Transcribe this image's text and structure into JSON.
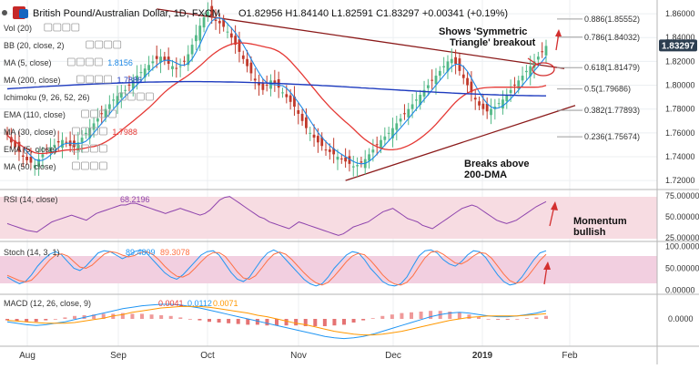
{
  "header": {
    "symbol": "British Pound/Australian Dollar, 1D, FXCM",
    "ohlc": "O1.82956  H1.84140  L1.82591  C1.83297  +0.00341 (+0.19%)"
  },
  "indicators": [
    {
      "label": "Vol (20)",
      "value": "",
      "color": "#777777"
    },
    {
      "label": "BB (20, close, 2)",
      "value": "",
      "color": "#777777"
    },
    {
      "label": "MA (5, close)",
      "value": "1.8156",
      "color": "#1e88e5"
    },
    {
      "label": "MA (200, close)",
      "value": "1.7886",
      "color": "#1e3bbf"
    },
    {
      "label": "Ichimoku (9, 26, 52, 26)",
      "value": "",
      "color": "#777777"
    },
    {
      "label": "EMA (110, close)",
      "value": "",
      "color": "#777777"
    },
    {
      "label": "MA (30, close)",
      "value": "1.7988",
      "color": "#e53935"
    },
    {
      "label": "EMA (5, close)",
      "value": "",
      "color": "#777777"
    },
    {
      "label": "MA (50, close)",
      "value": "",
      "color": "#777777"
    }
  ],
  "panes": {
    "rsi_label": "RSI (14, close)",
    "rsi_value": "68.2196",
    "stoch_label": "Stoch (14, 3, 1)",
    "stoch_k": "89.4809",
    "stoch_d": "89.3078",
    "macd_label": "MACD (12, 26, close, 9)",
    "macd_hist": "0.0041",
    "macd_line": "0.0112",
    "macd_signal": "0.0071"
  },
  "annotations": {
    "triangle": "Shows 'Symmetric Triangle' breakout",
    "dma": "Breaks above 200-DMA",
    "momentum": "Momentum bullish"
  },
  "colors": {
    "up_candle": "#53b987",
    "down_candle": "#c0392b",
    "ma5": "#1e88e5",
    "ma30": "#e53935",
    "ma200": "#1e3bbf",
    "trendline": "#8b1a1a",
    "rsi": "#8e44ad",
    "stoch_k": "#2196f3",
    "stoch_d": "#ff7043",
    "macd": "#2196f3",
    "signal": "#ff9800",
    "price_badge": "#2c3e50"
  },
  "chart_data": [
    {
      "type": "candlestick",
      "title": "British Pound/Australian Dollar, 1D, FXCM",
      "x_ticks": [
        "Aug",
        "Sep",
        "Oct",
        "Nov",
        "Dec",
        "2019",
        "Feb"
      ],
      "y_ticks": [
        1.72,
        1.74,
        1.76,
        1.78,
        1.8,
        1.82,
        1.84,
        1.86
      ],
      "ylim": [
        1.714,
        1.87
      ],
      "last_price": 1.83297,
      "fib_levels": [
        {
          "label": "0.886(1.85552)",
          "value": 1.85552
        },
        {
          "label": "0.786(1.84032)",
          "value": 1.84032
        },
        {
          "label": "0.618(1.81479)",
          "value": 1.81479
        },
        {
          "label": "0.5(1.79686)",
          "value": 1.79686
        },
        {
          "label": "0.382(1.77893)",
          "value": 1.77893
        },
        {
          "label": "0.236(1.75674)",
          "value": 1.75674
        }
      ],
      "series": [
        {
          "name": "Close",
          "values": [
            1.758,
            1.752,
            1.748,
            1.744,
            1.74,
            1.737,
            1.735,
            1.733,
            1.738,
            1.742,
            1.746,
            1.748,
            1.75,
            1.752,
            1.754,
            1.752,
            1.749,
            1.748,
            1.752,
            1.756,
            1.76,
            1.764,
            1.768,
            1.772,
            1.776,
            1.78,
            1.784,
            1.788,
            1.791,
            1.794,
            1.796,
            1.8,
            1.804,
            1.808,
            1.811,
            1.814,
            1.817,
            1.82,
            1.822,
            1.824,
            1.821,
            1.818,
            1.816,
            1.814,
            1.816,
            1.82,
            1.826,
            1.834,
            1.842,
            1.85,
            1.857,
            1.862,
            1.858,
            1.854,
            1.852,
            1.849,
            1.845,
            1.84,
            1.834,
            1.828,
            1.822,
            1.816,
            1.81,
            1.804,
            1.8,
            1.796,
            1.8,
            1.804,
            1.802,
            1.798,
            1.794,
            1.79,
            1.786,
            1.782,
            1.776,
            1.77,
            1.764,
            1.76,
            1.756,
            1.752,
            1.749,
            1.746,
            1.744,
            1.742,
            1.74,
            1.738,
            1.736,
            1.734,
            1.732,
            1.733,
            1.735,
            1.738,
            1.742,
            1.746,
            1.75,
            1.754,
            1.757,
            1.76,
            1.764,
            1.768,
            1.772,
            1.776,
            1.78,
            1.784,
            1.788,
            1.792,
            1.796,
            1.8,
            1.804,
            1.808,
            1.812,
            1.816,
            1.82,
            1.822,
            1.818,
            1.812,
            1.806,
            1.8,
            1.794,
            1.788,
            1.783,
            1.78,
            1.778,
            1.78,
            1.782,
            1.785,
            1.788,
            1.792,
            1.796,
            1.8,
            1.804,
            1.808,
            1.812,
            1.816,
            1.82,
            1.824,
            1.828,
            1.833
          ]
        },
        {
          "name": "MA (5, close)",
          "values": []
        },
        {
          "name": "MA (30, close)",
          "values": []
        },
        {
          "name": "MA (200, close)",
          "values": []
        }
      ]
    },
    {
      "type": "line",
      "title": "RSI (14, close)",
      "y_ticks": [
        25.0,
        50.0,
        75.0
      ],
      "ylim": [
        22,
        78
      ],
      "series": [
        {
          "name": "RSI",
          "values": [
            42,
            40,
            38,
            36,
            34,
            33,
            32,
            36,
            40,
            44,
            46,
            48,
            50,
            52,
            50,
            48,
            46,
            50,
            54,
            56,
            58,
            60,
            62,
            64,
            64,
            66,
            66,
            64,
            62,
            60,
            58,
            56,
            54,
            56,
            58,
            60,
            58,
            56,
            54,
            52,
            54,
            58,
            64,
            70,
            73,
            74,
            70,
            66,
            62,
            58,
            54,
            50,
            48,
            44,
            42,
            40,
            38,
            36,
            40,
            44,
            42,
            40,
            38,
            36,
            34,
            32,
            30,
            28,
            30,
            34,
            38,
            40,
            42,
            44,
            48,
            52,
            56,
            58,
            60,
            56,
            52,
            48,
            46,
            44,
            40,
            38,
            36,
            40,
            44,
            48,
            52,
            56,
            60,
            62,
            64,
            62,
            58,
            54,
            50,
            46,
            44,
            42,
            44,
            46,
            50,
            54,
            58,
            62,
            65,
            68
          ]
        }
      ]
    },
    {
      "type": "line",
      "title": "Stoch (14, 3, 1)",
      "y_ticks": [
        0.0,
        50.0,
        100.0
      ],
      "ylim": [
        -5,
        105
      ],
      "series": [
        {
          "name": "%K",
          "values": [
            30,
            22,
            15,
            20,
            35,
            55,
            70,
            82,
            88,
            80,
            65,
            50,
            45,
            55,
            70,
            85,
            90,
            88,
            80,
            72,
            78,
            88,
            92,
            85,
            70,
            55,
            40,
            30,
            25,
            35,
            50,
            65,
            80,
            88,
            90,
            80,
            60,
            40,
            25,
            20,
            30,
            50,
            70,
            85,
            92,
            85,
            70,
            55,
            40,
            25,
            15,
            10,
            15,
            30,
            50,
            65,
            80,
            88,
            85,
            70,
            50,
            35,
            20,
            12,
            10,
            15,
            30,
            55,
            78,
            90,
            92,
            85,
            70,
            60,
            55,
            65,
            80,
            90,
            88,
            75,
            55,
            35,
            20,
            12,
            15,
            30,
            50,
            70,
            85,
            90
          ]
        },
        {
          "name": "%D",
          "values": [
            34,
            28,
            22,
            19,
            23,
            37,
            53,
            69,
            80,
            83,
            78,
            65,
            53,
            50,
            57,
            70,
            82,
            88,
            86,
            80,
            76,
            79,
            86,
            88,
            82,
            70,
            55,
            42,
            32,
            30,
            37,
            50,
            65,
            78,
            86,
            86,
            77,
            60,
            42,
            28,
            25,
            33,
            50,
            68,
            82,
            87,
            82,
            70,
            55,
            40,
            27,
            17,
            12,
            18,
            32,
            48,
            65,
            78,
            84,
            81,
            68,
            52,
            35,
            22,
            14,
            12,
            18,
            33,
            54,
            74,
            87,
            89,
            82,
            72,
            62,
            60,
            67,
            78,
            86,
            84,
            73,
            55,
            37,
            22,
            16,
            19,
            32,
            50,
            68,
            82
          ]
        }
      ]
    },
    {
      "type": "line",
      "title": "MACD (12, 26, close, 9)",
      "y_ticks": [
        0.0
      ],
      "ylim": [
        -0.035,
        0.03
      ],
      "series": [
        {
          "name": "MACD",
          "values": [
            -0.004,
            -0.006,
            -0.008,
            -0.009,
            -0.008,
            -0.006,
            -0.004,
            -0.001,
            0.002,
            0.005,
            0.008,
            0.011,
            0.014,
            0.016,
            0.018,
            0.019,
            0.02,
            0.02,
            0.019,
            0.017,
            0.015,
            0.012,
            0.009,
            0.006,
            0.003,
            0.0,
            -0.003,
            -0.006,
            -0.009,
            -0.012,
            -0.015,
            -0.018,
            -0.021,
            -0.024,
            -0.026,
            -0.027,
            -0.026,
            -0.024,
            -0.021,
            -0.017,
            -0.013,
            -0.009,
            -0.005,
            -0.001,
            0.003,
            0.006,
            0.008,
            0.009,
            0.008,
            0.006,
            0.004,
            0.003,
            0.003,
            0.004,
            0.006,
            0.008,
            0.0112
          ]
        },
        {
          "name": "Signal",
          "values": [
            -0.002,
            -0.003,
            -0.004,
            -0.005,
            -0.006,
            -0.006,
            -0.006,
            -0.005,
            -0.003,
            -0.001,
            0.001,
            0.004,
            0.006,
            0.009,
            0.011,
            0.013,
            0.015,
            0.016,
            0.017,
            0.017,
            0.017,
            0.016,
            0.014,
            0.012,
            0.01,
            0.008,
            0.005,
            0.003,
            0.0,
            -0.003,
            -0.006,
            -0.008,
            -0.011,
            -0.014,
            -0.017,
            -0.019,
            -0.021,
            -0.022,
            -0.022,
            -0.021,
            -0.019,
            -0.017,
            -0.014,
            -0.011,
            -0.008,
            -0.005,
            -0.002,
            0.0,
            0.002,
            0.003,
            0.004,
            0.004,
            0.004,
            0.004,
            0.005,
            0.006,
            0.0071
          ]
        }
      ]
    }
  ]
}
